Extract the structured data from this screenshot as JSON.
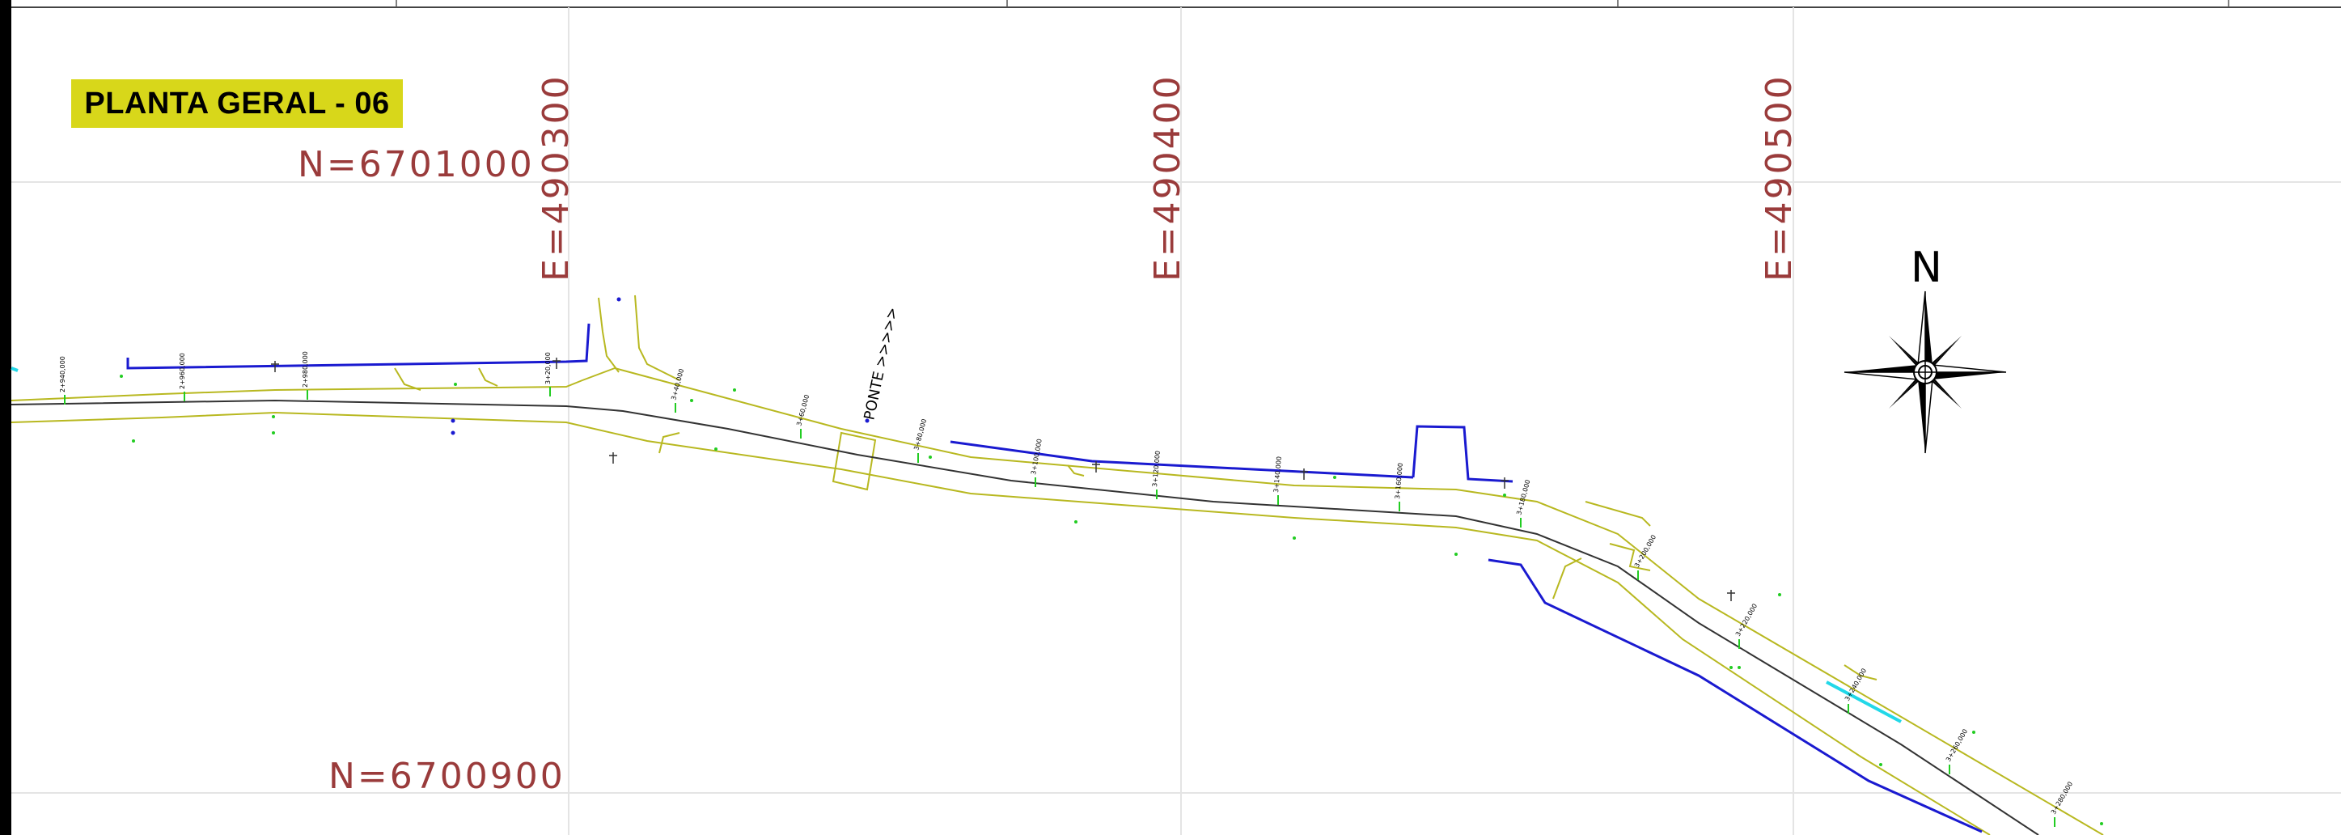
{
  "title": "PLANTA GERAL - 06",
  "grid": {
    "north_labels": [
      "N=6701000",
      "N=6700900"
    ],
    "east_labels": [
      "E=490300",
      "E=490400",
      "E=490500"
    ]
  },
  "north_arrow": {
    "label": "N",
    "icon": "compass-rose-icon"
  },
  "annotations": {
    "bridge": "PONTE >>>>>"
  },
  "stations": [
    "2+940,000",
    "2+960,000",
    "2+980,000",
    "3+20,000",
    "3+40,000",
    "3+60,000",
    "3+80,000",
    "3+100,000",
    "3+120,000",
    "3+140,000",
    "3+160,000",
    "3+180,000",
    "3+200,000",
    "3+220,000",
    "3+240,000",
    "3+260,000",
    "3+280,000"
  ],
  "colors": {
    "road_edge": "#b8b820",
    "centerline": "#333333",
    "fence": "#1a1ad0",
    "label": "#9a3b3b",
    "grid": "#e4e4e4",
    "point": "#22cc22",
    "highlight": "#22d8e8",
    "title_bg": "#d8d71a"
  }
}
